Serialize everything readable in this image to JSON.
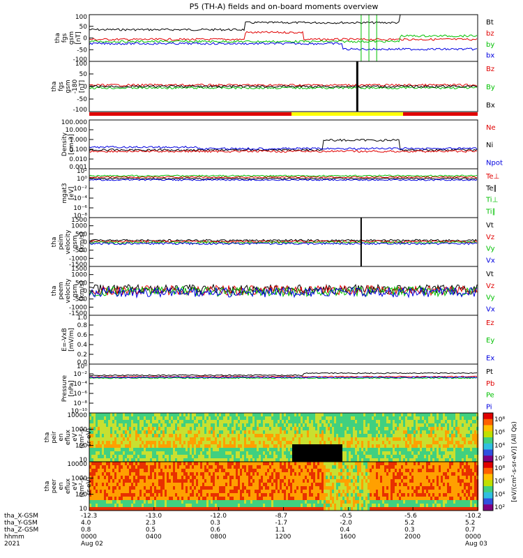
{
  "title": "P5 (TH-A) fields and on-board moments overview",
  "colors": {
    "black": "#000000",
    "red": "#e00000",
    "green": "#00c000",
    "blue": "#0000e0",
    "yellow": "#ffff00"
  },
  "chart_data": [
    {
      "id": "fgs_gsm",
      "type": "line",
      "ylabel": [
        "tha",
        "fgs",
        "gsm",
        "[nT]"
      ],
      "yticks": [
        "100",
        "50",
        "0",
        "-50",
        "-100"
      ],
      "series": [
        {
          "name": "Bt",
          "color": "black"
        },
        {
          "name": "bz",
          "color": "red"
        },
        {
          "name": "by",
          "color": "green"
        },
        {
          "name": "bx",
          "color": "blue"
        }
      ]
    },
    {
      "id": "fgs_gse",
      "type": "line",
      "ylabel": [
        "tha",
        "fgs",
        "gsm",
        "-180",
        "[nT]"
      ],
      "yticks": [
        "100",
        "50",
        "0",
        "-50",
        "-100"
      ],
      "series": [
        {
          "name": "Bz",
          "color": "red"
        },
        {
          "name": "By",
          "color": "green"
        },
        {
          "name": "Bx",
          "color": "black"
        }
      ]
    },
    {
      "id": "density",
      "type": "line",
      "ylabel": [
        "Density",
        "[cm-3]"
      ],
      "yticks": [
        "100.000",
        "10.000",
        "1.000",
        "0.100",
        "0.010",
        "0.001"
      ],
      "scale": "log",
      "series": [
        {
          "name": "Ne",
          "color": "red"
        },
        {
          "name": "Ni",
          "color": "black"
        },
        {
          "name": "Npot",
          "color": "blue"
        }
      ]
    },
    {
      "id": "temp",
      "type": "line",
      "ylabel": [
        "mgat3",
        "[eV]"
      ],
      "yticks": [
        "10²",
        "10⁰",
        "10⁻²",
        "10⁻⁴",
        "10⁻⁶",
        "10⁻⁸"
      ],
      "scale": "log",
      "series": [
        {
          "name": "Te⊥",
          "color": "red"
        },
        {
          "name": "Te∥",
          "color": "black"
        },
        {
          "name": "Ti⊥",
          "color": "green"
        },
        {
          "name": "Ti∥",
          "color": "green"
        }
      ]
    },
    {
      "id": "peim_vel",
      "type": "line",
      "ylabel": [
        "tha",
        "peim",
        "velocity",
        "gsm",
        "[km/s]"
      ],
      "yticks": [
        "1500",
        "1000",
        "500",
        "0",
        "-500",
        "-1000",
        "-1500"
      ],
      "series": [
        {
          "name": "Vt",
          "color": "black"
        },
        {
          "name": "Vz",
          "color": "red"
        },
        {
          "name": "Vy",
          "color": "green"
        },
        {
          "name": "Vx",
          "color": "blue"
        }
      ]
    },
    {
      "id": "peem_vel",
      "type": "line",
      "ylabel": [
        "tha",
        "peem",
        "velocity",
        "gsm",
        "[km/s]"
      ],
      "yticks": [
        "1500",
        "1000",
        "500",
        "0",
        "-500",
        "-1000",
        "-1500"
      ],
      "series": [
        {
          "name": "Vt",
          "color": "black"
        },
        {
          "name": "Vz",
          "color": "red"
        },
        {
          "name": "Vy",
          "color": "green"
        },
        {
          "name": "Vx",
          "color": "blue"
        }
      ]
    },
    {
      "id": "efield",
      "type": "line",
      "ylabel": [
        "E=-VxB",
        "[mV/m]"
      ],
      "yticks": [
        "1.0",
        "0.8",
        "0.6",
        "0.4",
        "0.2",
        "0.0"
      ],
      "series": [
        {
          "name": "Ez",
          "color": "red"
        },
        {
          "name": "Ey",
          "color": "green"
        },
        {
          "name": "Ex",
          "color": "blue"
        }
      ]
    },
    {
      "id": "pressure",
      "type": "line",
      "ylabel": [
        "Pressure",
        "[nPa]"
      ],
      "yticks": [
        "10⁰",
        "10⁻²",
        "10⁻⁴",
        "10⁻⁶",
        "10⁻⁸",
        "10⁻¹⁰"
      ],
      "scale": "log",
      "series": [
        {
          "name": "Pt",
          "color": "black"
        },
        {
          "name": "Pb",
          "color": "red"
        },
        {
          "name": "Pe",
          "color": "green"
        },
        {
          "name": "Pi",
          "color": "blue"
        }
      ]
    },
    {
      "id": "peir_spec",
      "type": "heatmap",
      "ylabel": [
        "tha",
        "peir",
        "en",
        "eflux",
        "eV",
        "(cm²-s-",
        "sr-eV)"
      ],
      "yticks": [
        "10000",
        "1000",
        "100",
        "10"
      ],
      "colorbar_ticks": [
        "10⁸",
        "10⁶",
        "10⁴",
        "10²"
      ]
    },
    {
      "id": "peer_spec",
      "type": "heatmap",
      "ylabel": [
        "tha",
        "peer",
        "en",
        "eflux",
        "eV",
        "(cm²-s-",
        "sr-eV)"
      ],
      "yticks": [
        "10000",
        "1000",
        "100",
        "10"
      ],
      "colorbar_ticks": [
        "10⁸",
        "10⁶",
        "10⁴",
        "10²"
      ]
    }
  ],
  "colorbar_label": "[eV/(cm²-s-sr-eV)] (All Qs)",
  "overlay_marker": "Ez",
  "xaxis": {
    "row_labels": [
      "tha_X-GSM",
      "tha_Y-GSM",
      "tha_Z-GSM",
      "hhmm",
      "2021"
    ],
    "columns": [
      [
        "-12.3",
        "4.0",
        "0.8",
        "0000",
        "Aug 02"
      ],
      [
        "-13.0",
        "2.3",
        "0.5",
        "0400",
        ""
      ],
      [
        "-12.0",
        "0.3",
        "0.6",
        "0800",
        ""
      ],
      [
        "-8.7",
        "-1.7",
        "1.1",
        "1200",
        ""
      ],
      [
        "-0.5",
        "-2.0",
        "0.4",
        "1600",
        ""
      ],
      [
        "-5.6",
        "5.2",
        "0.3",
        "2000",
        ""
      ],
      [
        "-10.2",
        "5.2",
        "0.7",
        "0000",
        "Aug 03"
      ]
    ]
  }
}
